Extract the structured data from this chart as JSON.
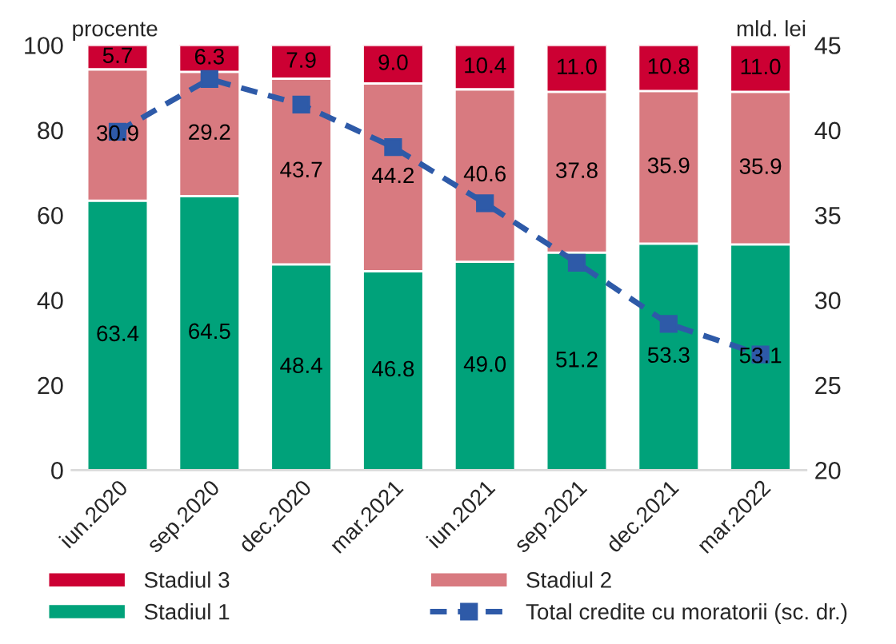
{
  "chart_data": {
    "type": "bar",
    "stacked": true,
    "ylabel": "procente",
    "y2label": "mld. lei",
    "categories": [
      "iun.2020",
      "sep.2020",
      "dec.2020",
      "mar.2021",
      "iun.2021",
      "sep.2021",
      "dec.2021",
      "mar.2022"
    ],
    "ylim": [
      0,
      100
    ],
    "yticks": [
      0,
      20,
      40,
      60,
      80,
      100
    ],
    "y2lim": [
      20,
      45
    ],
    "y2ticks": [
      20,
      25,
      30,
      35,
      40,
      45
    ],
    "grid": false,
    "legend": "bottom",
    "series": [
      {
        "name": "Stadiul 1",
        "color": "#00a27a",
        "values": [
          63.4,
          64.5,
          48.4,
          46.8,
          49.0,
          51.2,
          53.3,
          53.1
        ],
        "value_labels": [
          "63.4",
          "64.5",
          "48.4",
          "46.8",
          "49.0",
          "51.2",
          "53.3",
          "53.1"
        ]
      },
      {
        "name": "Stadiul 2",
        "color": "#d87a80",
        "values": [
          30.9,
          29.2,
          43.7,
          44.2,
          40.6,
          37.8,
          35.9,
          35.9
        ],
        "value_labels": [
          "30.9",
          "29.2",
          "43.7",
          "44.2",
          "40.6",
          "37.8",
          "35.9",
          "35.9"
        ]
      },
      {
        "name": "Stadiul 3",
        "color": "#cc0033",
        "values": [
          5.7,
          6.3,
          7.9,
          9.0,
          10.4,
          11.0,
          10.8,
          11.0
        ],
        "value_labels": [
          "5.7",
          "6.3",
          "7.9",
          "9.0",
          "10.4",
          "11.0",
          "10.8",
          "11.0"
        ]
      },
      {
        "name": "Total credite cu moratorii (sc. dr.)",
        "type": "line",
        "axis": "y2",
        "color": "#2e5aa8",
        "marker": "square",
        "line_style": "dashed",
        "values": [
          39.9,
          43.0,
          41.5,
          39.0,
          35.7,
          32.2,
          28.6,
          26.8
        ]
      }
    ]
  }
}
